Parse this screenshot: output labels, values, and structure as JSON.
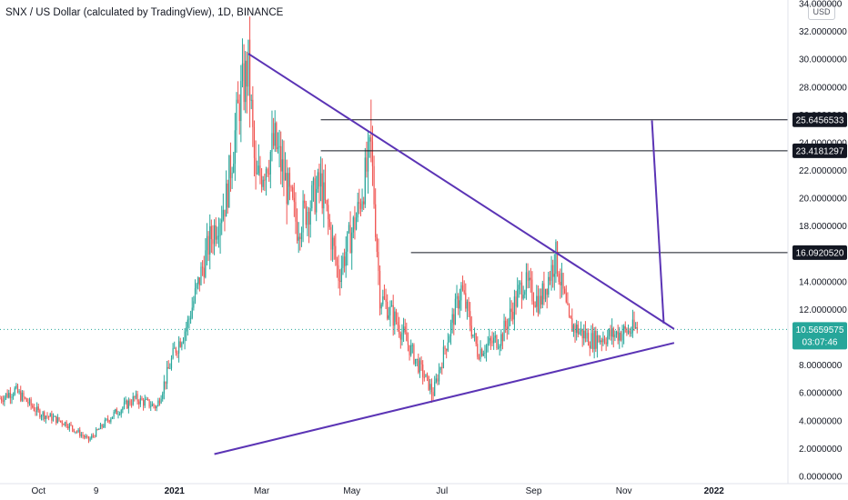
{
  "header": {
    "title": "SNX / US Dollar (calculated by TradingView), 1D, BINANCE",
    "currency_button": "USD"
  },
  "colors": {
    "up": "#26a69a",
    "down": "#ef5350",
    "trendline": "#5b34b5",
    "level_line": "#131722",
    "tag_bg": "#131722",
    "last_price_bg": "#26a69a",
    "last_price_line": "#26a69a"
  },
  "chart_data": {
    "type": "candlestick",
    "symbol": "SNX / US Dollar",
    "interval": "1D",
    "exchange": "BINANCE",
    "currency": "USD",
    "ylim": [
      0,
      34
    ],
    "y_ticks": [
      0,
      2,
      4,
      6,
      8,
      10,
      12,
      14,
      16,
      18,
      20,
      22,
      24,
      26,
      28,
      30,
      32,
      34
    ],
    "y_tick_labels": [
      "0.0000000",
      "2.0000000",
      "4.0000000",
      "6.0000000",
      "8.0000000",
      "10.0000000",
      "12.0000000",
      "14.0000000",
      "16.0000000",
      "18.0000000",
      "20.0000000",
      "22.0000000",
      "24.0000000",
      "26.0000000",
      "28.0000000",
      "30.0000000",
      "32.0000000",
      "34.000000"
    ],
    "x_tick_labels": [
      {
        "label": "Oct",
        "date": "2020-10-01"
      },
      {
        "label": "9",
        "date": "2020-11-09"
      },
      {
        "label": "2021",
        "date": "2021-01-01"
      },
      {
        "label": "Mar",
        "date": "2021-03-01"
      },
      {
        "label": "May",
        "date": "2021-05-01"
      },
      {
        "label": "Jul",
        "date": "2021-07-01"
      },
      {
        "label": "Sep",
        "date": "2021-09-01"
      },
      {
        "label": "Nov",
        "date": "2021-11-01"
      },
      {
        "label": "2022",
        "date": "2022-01-01"
      }
    ],
    "x_range": [
      "2020-09-05",
      "2022-02-20"
    ],
    "price_path": [
      {
        "date": "2020-09-05",
        "price": 5.6
      },
      {
        "date": "2020-09-15",
        "price": 6.2
      },
      {
        "date": "2020-10-01",
        "price": 4.6
      },
      {
        "date": "2020-10-20",
        "price": 3.8
      },
      {
        "date": "2020-11-04",
        "price": 2.6
      },
      {
        "date": "2020-11-20",
        "price": 4.4
      },
      {
        "date": "2020-12-05",
        "price": 5.6
      },
      {
        "date": "2020-12-20",
        "price": 5.0
      },
      {
        "date": "2021-01-01",
        "price": 9.0
      },
      {
        "date": "2021-01-10",
        "price": 11.0
      },
      {
        "date": "2021-01-25",
        "price": 17.0
      },
      {
        "date": "2021-02-05",
        "price": 20.0
      },
      {
        "date": "2021-02-14",
        "price": 27.0
      },
      {
        "date": "2021-02-20",
        "price": 29.5
      },
      {
        "date": "2021-02-25",
        "price": 21.0
      },
      {
        "date": "2021-03-10",
        "price": 24.0
      },
      {
        "date": "2021-03-25",
        "price": 18.0
      },
      {
        "date": "2021-04-10",
        "price": 21.0
      },
      {
        "date": "2021-04-22",
        "price": 14.5
      },
      {
        "date": "2021-05-05",
        "price": 19.0
      },
      {
        "date": "2021-05-14",
        "price": 23.5
      },
      {
        "date": "2021-05-20",
        "price": 13.0
      },
      {
        "date": "2021-06-01",
        "price": 11.0
      },
      {
        "date": "2021-06-15",
        "price": 8.0
      },
      {
        "date": "2021-06-25",
        "price": 6.0
      },
      {
        "date": "2021-07-05",
        "price": 10.0
      },
      {
        "date": "2021-07-14",
        "price": 13.5
      },
      {
        "date": "2021-07-25",
        "price": 9.0
      },
      {
        "date": "2021-08-10",
        "price": 10.0
      },
      {
        "date": "2021-08-25",
        "price": 14.0
      },
      {
        "date": "2021-09-05",
        "price": 12.5
      },
      {
        "date": "2021-09-16",
        "price": 15.8
      },
      {
        "date": "2021-09-25",
        "price": 11.0
      },
      {
        "date": "2021-10-10",
        "price": 9.8
      },
      {
        "date": "2021-10-25",
        "price": 10.2
      },
      {
        "date": "2021-11-10",
        "price": 10.6
      }
    ],
    "spikes": [
      {
        "date": "2021-02-20",
        "high": 30.4
      },
      {
        "date": "2021-05-14",
        "high": 27.1
      },
      {
        "date": "2021-09-15",
        "high": 16.0
      },
      {
        "date": "2021-06-24",
        "low": 5.3
      },
      {
        "date": "2020-11-04",
        "low": 2.4
      }
    ],
    "last_price": 10.5659575,
    "last_price_label": "10.5659575",
    "countdown": "03:07:46",
    "horizontal_levels": [
      {
        "price": 25.6456533,
        "label": "25.6456533",
        "start_date": "2021-04-10",
        "end_date": "2022-02-20"
      },
      {
        "price": 23.4181297,
        "label": "23.4181297",
        "start_date": "2021-04-10",
        "end_date": "2022-02-20"
      },
      {
        "price": 16.092052,
        "label": "16.0920520",
        "start_date": "2021-06-10",
        "end_date": "2022-02-20"
      }
    ],
    "trendlines": [
      {
        "start": {
          "date": "2021-02-20",
          "price": 30.4
        },
        "end": {
          "date": "2021-12-05",
          "price": 10.6
        }
      },
      {
        "start": {
          "date": "2021-01-28",
          "price": 1.6
        },
        "end": {
          "date": "2021-12-05",
          "price": 9.6
        }
      },
      {
        "start": {
          "date": "2021-11-20",
          "price": 25.6
        },
        "end": {
          "date": "2021-11-28",
          "price": 11.0
        }
      }
    ]
  }
}
